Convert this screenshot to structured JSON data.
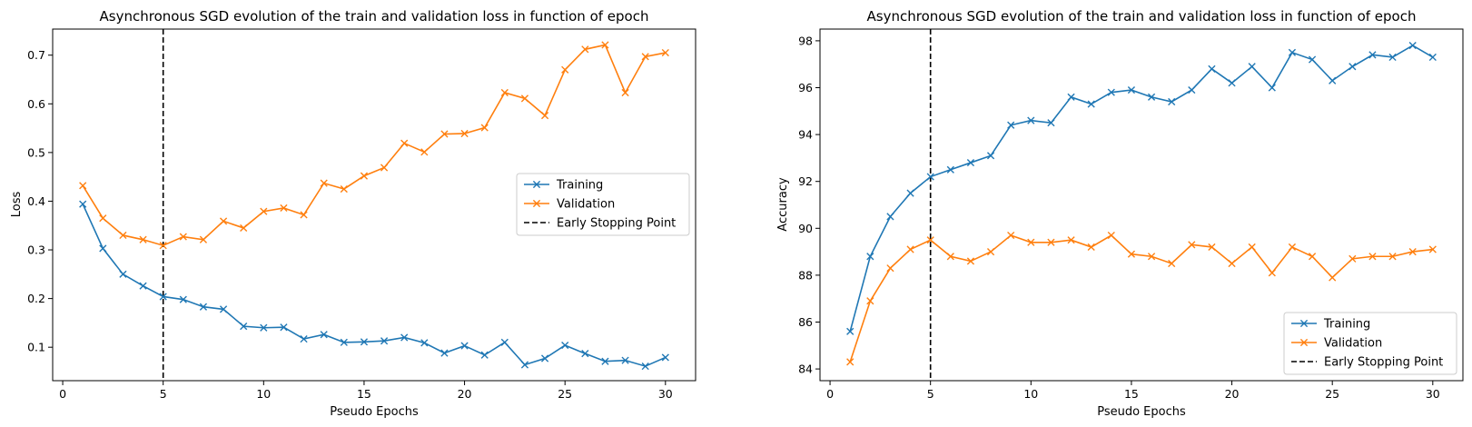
{
  "chart_data": [
    {
      "type": "line",
      "title": "Asynchronous SGD evolution of the train and validation loss in function of epoch",
      "xlabel": "Pseudo Epochs",
      "ylabel": "Loss",
      "xlim": [
        -0.5,
        31.5
      ],
      "ylim": [
        0.0313,
        0.7536
      ],
      "xticks": [
        0,
        5,
        10,
        15,
        20,
        25,
        30
      ],
      "yticks": [
        0.1,
        0.2,
        0.3,
        0.4,
        0.5,
        0.6,
        0.7
      ],
      "grid": false,
      "legend_position": "center-right",
      "x": [
        1,
        2,
        3,
        4,
        5,
        6,
        7,
        8,
        9,
        10,
        11,
        12,
        13,
        14,
        15,
        16,
        17,
        18,
        19,
        20,
        21,
        22,
        23,
        24,
        25,
        26,
        27,
        28,
        29,
        30
      ],
      "series": [
        {
          "name": "Training",
          "color": "#1f77b4",
          "marker": "x",
          "values": [
            0.394,
            0.303,
            0.25,
            0.226,
            0.204,
            0.198,
            0.183,
            0.178,
            0.143,
            0.14,
            0.141,
            0.117,
            0.126,
            0.11,
            0.111,
            0.113,
            0.12,
            0.109,
            0.088,
            0.103,
            0.084,
            0.11,
            0.064,
            0.077,
            0.104,
            0.087,
            0.071,
            0.073,
            0.061,
            0.079
          ]
        },
        {
          "name": "Validation",
          "color": "#ff7f0e",
          "marker": "x",
          "values": [
            0.432,
            0.365,
            0.33,
            0.321,
            0.309,
            0.327,
            0.321,
            0.359,
            0.345,
            0.379,
            0.386,
            0.372,
            0.437,
            0.425,
            0.452,
            0.469,
            0.519,
            0.501,
            0.538,
            0.539,
            0.551,
            0.623,
            0.611,
            0.576,
            0.67,
            0.712,
            0.721,
            0.623,
            0.697,
            0.705
          ]
        }
      ],
      "vline": {
        "x": 5,
        "label": "Early Stopping Point",
        "color": "#000000",
        "style": "dashed"
      }
    },
    {
      "type": "line",
      "title": "Asynchronous SGD evolution of the train and validation loss in function of epoch",
      "xlabel": "Pseudo Epochs",
      "ylabel": "Accuracy",
      "xlim": [
        -0.5,
        31.5
      ],
      "ylim": [
        83.5,
        98.5
      ],
      "xticks": [
        0,
        5,
        10,
        15,
        20,
        25,
        30
      ],
      "yticks": [
        84,
        86,
        88,
        90,
        92,
        94,
        96,
        98
      ],
      "grid": false,
      "legend_position": "lower-right",
      "x": [
        1,
        2,
        3,
        4,
        5,
        6,
        7,
        8,
        9,
        10,
        11,
        12,
        13,
        14,
        15,
        16,
        17,
        18,
        19,
        20,
        21,
        22,
        23,
        24,
        25,
        26,
        27,
        28,
        29,
        30
      ],
      "series": [
        {
          "name": "Training",
          "color": "#1f77b4",
          "marker": "x",
          "values": [
            85.6,
            88.8,
            90.5,
            91.5,
            92.2,
            92.5,
            92.8,
            93.1,
            94.4,
            94.6,
            94.5,
            95.6,
            95.3,
            95.8,
            95.9,
            95.6,
            95.4,
            95.9,
            96.8,
            96.2,
            96.9,
            96.0,
            97.5,
            97.2,
            96.3,
            96.9,
            97.4,
            97.3,
            97.8,
            97.3
          ]
        },
        {
          "name": "Validation",
          "color": "#ff7f0e",
          "marker": "x",
          "values": [
            84.3,
            86.9,
            88.3,
            89.1,
            89.5,
            88.8,
            88.6,
            89.0,
            89.7,
            89.4,
            89.4,
            89.5,
            89.2,
            89.7,
            88.9,
            88.8,
            88.5,
            89.3,
            89.2,
            88.5,
            89.2,
            88.1,
            89.2,
            88.8,
            87.9,
            88.7,
            88.8,
            88.8,
            89.0,
            89.1
          ]
        }
      ],
      "vline": {
        "x": 5,
        "label": "Early Stopping Point",
        "color": "#000000",
        "style": "dashed"
      }
    }
  ]
}
